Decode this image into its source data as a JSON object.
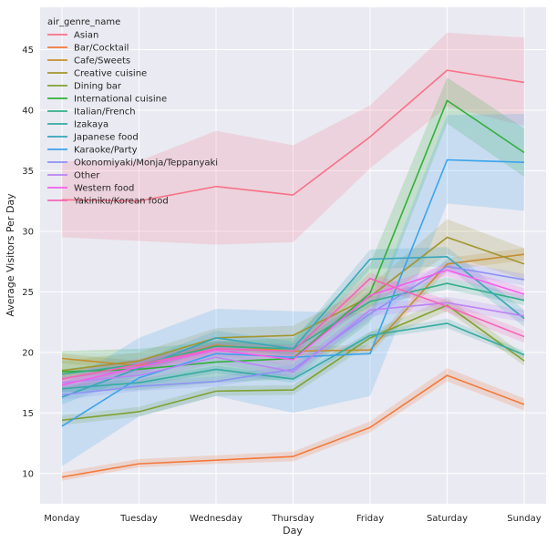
{
  "chart_data": {
    "type": "line",
    "title": "",
    "xlabel": "Day",
    "ylabel": "Average Visitors Per Day",
    "categories": [
      "Monday",
      "Tuesday",
      "Wednesday",
      "Thursday",
      "Friday",
      "Saturday",
      "Sunday"
    ],
    "ylim": [
      7.5,
      48.5
    ],
    "yticks": [
      10,
      15,
      20,
      25,
      30,
      35,
      40,
      45
    ],
    "grid": true,
    "legend": {
      "title": "air_genre_name",
      "placement": "top-left"
    },
    "series": [
      {
        "name": "Asian",
        "color": "#f77189",
        "values": [
          32.6,
          32.5,
          33.7,
          33.0,
          37.8,
          43.3,
          42.3
        ],
        "lower": [
          29.5,
          29.2,
          28.9,
          29.1,
          35.2,
          40.3,
          38.7
        ],
        "upper": [
          35.8,
          35.8,
          38.3,
          37.1,
          40.4,
          46.4,
          46.0
        ]
      },
      {
        "name": "Bar/Cocktail",
        "color": "#f2793b",
        "values": [
          9.7,
          10.8,
          11.1,
          11.4,
          13.8,
          18.1,
          15.7
        ],
        "lower": [
          9.4,
          10.5,
          10.8,
          11.0,
          13.4,
          17.6,
          15.2
        ],
        "upper": [
          10.1,
          11.2,
          11.5,
          11.8,
          14.3,
          18.7,
          16.2
        ]
      },
      {
        "name": "Cafe/Sweets",
        "color": "#c58e32",
        "values": [
          19.5,
          18.9,
          20.6,
          20.1,
          20.2,
          27.3,
          28.1
        ],
        "lower": [
          19.1,
          18.5,
          20.2,
          19.7,
          19.8,
          26.8,
          27.6
        ],
        "upper": [
          19.9,
          19.3,
          21.0,
          20.5,
          20.6,
          27.8,
          28.6
        ]
      },
      {
        "name": "Creative cuisine",
        "color": "#a29630",
        "values": [
          18.5,
          19.3,
          21.2,
          21.4,
          24.6,
          29.5,
          27.3
        ],
        "lower": [
          17.8,
          18.6,
          20.4,
          20.6,
          23.7,
          28.1,
          26.0
        ],
        "upper": [
          19.3,
          20.0,
          22.0,
          22.2,
          25.5,
          31.0,
          28.6
        ]
      },
      {
        "name": "Dining bar",
        "color": "#80a032",
        "values": [
          14.4,
          15.1,
          16.8,
          16.9,
          21.2,
          23.9,
          19.3
        ],
        "lower": [
          14.0,
          14.7,
          16.4,
          16.5,
          20.7,
          23.4,
          18.9
        ],
        "upper": [
          14.8,
          15.5,
          17.2,
          17.3,
          21.7,
          24.5,
          19.8
        ]
      },
      {
        "name": "International cuisine",
        "color": "#33b03b",
        "values": [
          18.4,
          18.6,
          19.2,
          19.5,
          24.9,
          40.8,
          36.5
        ],
        "lower": [
          16.7,
          16.9,
          17.5,
          17.8,
          22.5,
          38.9,
          34.5
        ],
        "upper": [
          20.1,
          20.3,
          20.9,
          21.2,
          27.3,
          42.7,
          38.5
        ]
      },
      {
        "name": "Italian/French",
        "color": "#34ae8a",
        "values": [
          18.2,
          19.0,
          20.5,
          20.3,
          24.2,
          25.7,
          24.3
        ],
        "lower": [
          17.8,
          18.6,
          20.1,
          19.9,
          23.8,
          25.2,
          23.9
        ],
        "upper": [
          18.6,
          19.4,
          20.9,
          20.7,
          24.6,
          26.2,
          24.7
        ]
      },
      {
        "name": "Izakaya",
        "color": "#37aaa2",
        "values": [
          17.0,
          17.5,
          18.6,
          17.8,
          21.4,
          22.4,
          19.8
        ],
        "lower": [
          16.7,
          17.2,
          18.3,
          17.5,
          21.1,
          22.0,
          19.5
        ],
        "upper": [
          17.3,
          17.8,
          18.9,
          18.1,
          21.7,
          22.8,
          20.1
        ]
      },
      {
        "name": "Japanese food",
        "color": "#39a6b9",
        "values": [
          16.3,
          18.7,
          21.2,
          20.3,
          27.7,
          27.9,
          22.8
        ],
        "lower": [
          15.7,
          18.1,
          20.6,
          19.7,
          26.9,
          27.1,
          22.1
        ],
        "upper": [
          16.9,
          19.3,
          21.8,
          20.9,
          28.5,
          28.7,
          23.5
        ]
      },
      {
        "name": "Karaoke/Party",
        "color": "#3ba3ec",
        "values": [
          13.9,
          17.9,
          19.9,
          19.6,
          19.9,
          35.9,
          35.7
        ],
        "lower": [
          10.6,
          14.7,
          16.4,
          15.0,
          16.4,
          32.3,
          31.7
        ],
        "upper": [
          17.3,
          21.2,
          23.6,
          23.4,
          23.2,
          39.6,
          39.7
        ]
      },
      {
        "name": "Okonomiyaki/Monja/Teppanyaki",
        "color": "#8e91f4",
        "values": [
          16.5,
          17.2,
          17.6,
          18.6,
          23.2,
          27.1,
          26.0
        ],
        "lower": [
          16.1,
          16.8,
          17.2,
          18.2,
          22.7,
          26.6,
          25.5
        ],
        "upper": [
          16.9,
          17.6,
          18.0,
          19.0,
          23.7,
          27.6,
          26.5
        ]
      },
      {
        "name": "Other",
        "color": "#bb83f4",
        "values": [
          17.5,
          18.1,
          19.6,
          18.4,
          23.5,
          24.1,
          23.0
        ],
        "lower": [
          17.0,
          17.6,
          19.1,
          17.9,
          23.0,
          23.6,
          22.5
        ],
        "upper": [
          18.0,
          18.6,
          20.1,
          18.9,
          24.0,
          24.6,
          23.5
        ]
      },
      {
        "name": "Western food",
        "color": "#f45deb",
        "values": [
          17.3,
          18.8,
          20.2,
          19.4,
          24.7,
          26.8,
          24.8
        ],
        "lower": [
          16.8,
          18.3,
          19.7,
          18.9,
          24.2,
          26.3,
          24.3
        ],
        "upper": [
          17.8,
          19.3,
          20.7,
          19.9,
          25.2,
          27.3,
          25.3
        ]
      },
      {
        "name": "Yakiniku/Korean food",
        "color": "#f564b8",
        "values": [
          17.8,
          19.0,
          20.3,
          20.1,
          26.1,
          23.8,
          21.3
        ],
        "lower": [
          17.3,
          18.5,
          19.8,
          19.6,
          25.6,
          23.3,
          20.8
        ],
        "upper": [
          18.3,
          19.5,
          20.8,
          20.6,
          26.6,
          24.3,
          21.8
        ]
      }
    ]
  }
}
